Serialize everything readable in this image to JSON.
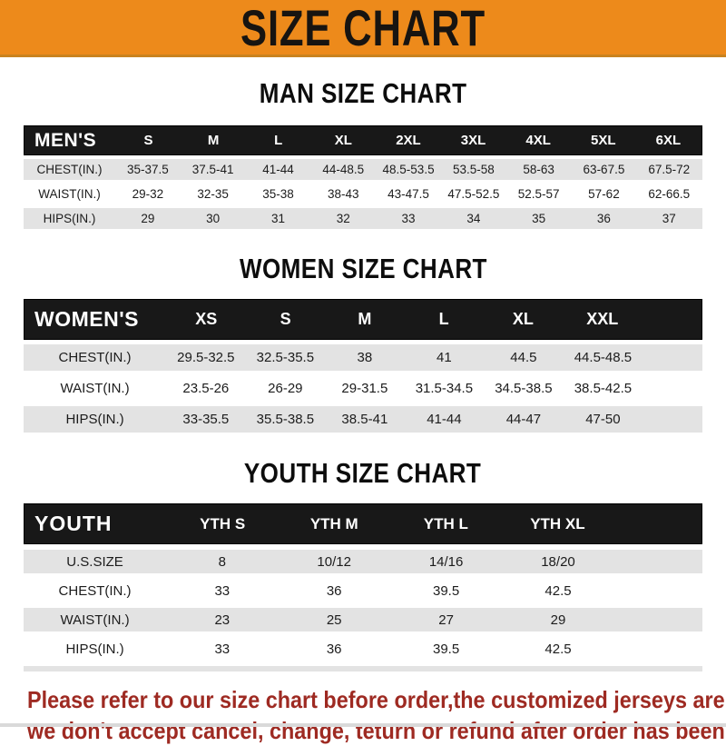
{
  "banner": {
    "title": "SIZE CHART",
    "bg_color": "#ED8A1B",
    "text_color": "#171411"
  },
  "sections": {
    "man": {
      "heading": "MAN SIZE CHART"
    },
    "women": {
      "heading": "WOMEN SIZE CHART"
    },
    "youth": {
      "heading": "YOUTH SIZE CHART"
    }
  },
  "tables": [
    {
      "title": "MEN'S",
      "label_pct": 13.5,
      "col_pct": 9.6,
      "columns": [
        "S",
        "M",
        "L",
        "XL",
        "2XL",
        "3XL",
        "4XL",
        "5XL",
        "6XL"
      ],
      "rows": [
        {
          "label": "CHEST(IN.)",
          "values": [
            "35-37.5",
            "37.5-41",
            "41-44",
            "44-48.5",
            "48.5-53.5",
            "53.5-58",
            "58-63",
            "63-67.5",
            "67.5-72"
          ]
        },
        {
          "label": "WAIST(IN.)",
          "values": [
            "29-32",
            "32-35",
            "35-38",
            "38-43",
            "43-47.5",
            "47.5-52.5",
            "52.5-57",
            "57-62",
            "62-66.5"
          ]
        },
        {
          "label": "HIPS(IN.)",
          "values": [
            "29",
            "30",
            "31",
            "32",
            "33",
            "34",
            "35",
            "36",
            "37"
          ]
        }
      ],
      "bottom_stripe": false
    },
    {
      "title": "WOMEN'S",
      "label_pct": 21,
      "col_pct": 11.7,
      "columns": [
        "XS",
        "S",
        "M",
        "L",
        "XL",
        "XXL"
      ],
      "rows": [
        {
          "label": "CHEST(IN.)",
          "values": [
            "29.5-32.5",
            "32.5-35.5",
            "38",
            "41",
            "44.5",
            "44.5-48.5"
          ]
        },
        {
          "label": "WAIST(IN.)",
          "values": [
            "23.5-26",
            "26-29",
            "29-31.5",
            "31.5-34.5",
            "34.5-38.5",
            "38.5-42.5"
          ]
        },
        {
          "label": "HIPS(IN.)",
          "values": [
            "33-35.5",
            "35.5-38.5",
            "38.5-41",
            "41-44",
            "44-47",
            "47-50"
          ]
        }
      ],
      "bottom_stripe": false
    },
    {
      "title": "YOUTH",
      "label_pct": 21,
      "col_pct": 16.5,
      "columns": [
        "YTH S",
        "YTH M",
        "YTH L",
        "YTH XL"
      ],
      "rows": [
        {
          "label": "U.S.SIZE",
          "values": [
            "8",
            "10/12",
            "14/16",
            "18/20"
          ]
        },
        {
          "label": "CHEST(IN.)",
          "values": [
            "33",
            "36",
            "39.5",
            "42.5"
          ]
        },
        {
          "label": "WAIST(IN.)",
          "values": [
            "23",
            "25",
            "27",
            "29"
          ]
        },
        {
          "label": "HIPS(IN.)",
          "values": [
            "33",
            "36",
            "39.5",
            "42.5"
          ]
        }
      ],
      "bottom_stripe": true
    }
  ],
  "footer": {
    "line1": "Please refer to our size chart before order,the customized jerseys are special products,",
    "line2": "we don't accept cancel, change, teturn or refund after order has been placed!",
    "text_color": "#9E2A22"
  },
  "colors": {
    "banner_orange": "#ED8A1B",
    "header_black": "#181818",
    "stripe_gray": "#e3e3e3",
    "footer_red": "#9E2A22"
  }
}
